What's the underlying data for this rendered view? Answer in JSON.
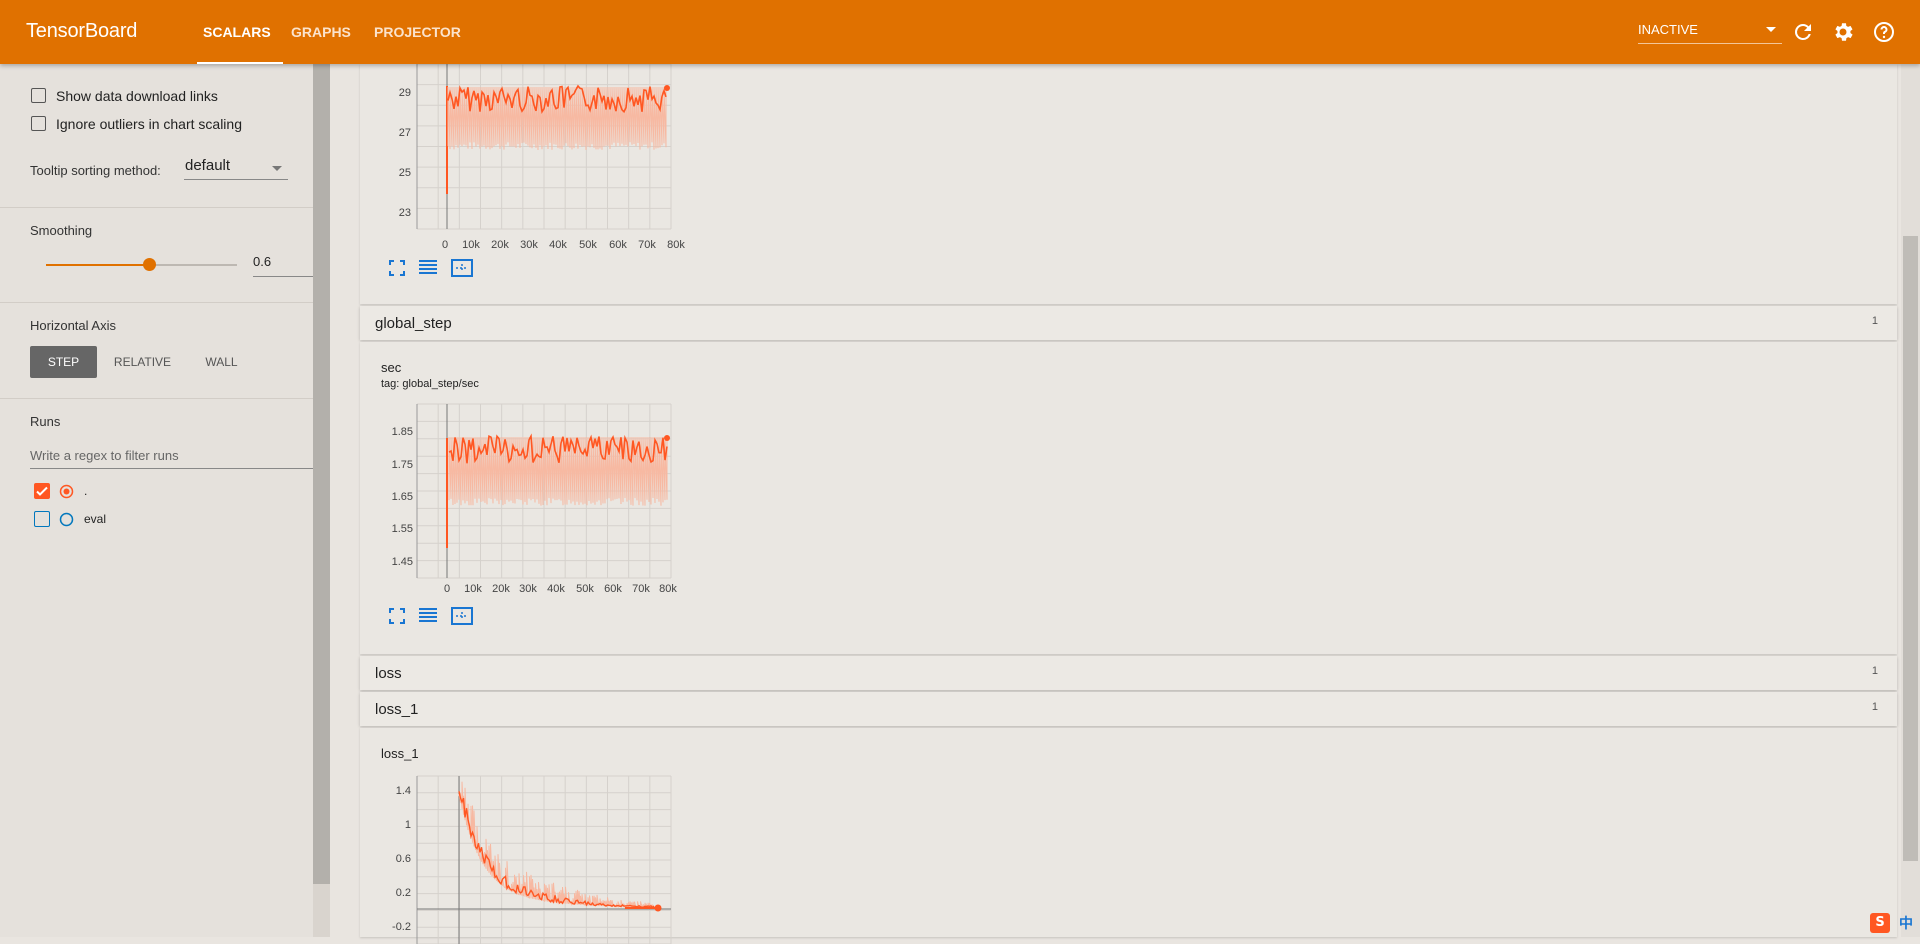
{
  "header": {
    "brand": "TensorBoard",
    "tabs": [
      {
        "label": "SCALARS"
      },
      {
        "label": "GRAPHS"
      },
      {
        "label": "PROJECTOR"
      }
    ],
    "status": "INACTIVE"
  },
  "sidebar": {
    "show_download_links": "Show data download links",
    "ignore_outliers": "Ignore outliers in chart scaling",
    "tooltip_label": "Tooltip sorting method:",
    "tooltip_value": "default",
    "smoothing_label": "Smoothing",
    "smoothing_value": "0.6",
    "smoothing_fraction": 0.6,
    "horizontal_axis_label": "Horizontal Axis",
    "axis_buttons": [
      "STEP",
      "RELATIVE",
      "WALL"
    ],
    "runs_label": "Runs",
    "runs_filter_placeholder": "Write a regex to filter runs",
    "runs": [
      {
        "name": ".",
        "checked": true,
        "color": "#ff5722"
      },
      {
        "name": "eval",
        "checked": false,
        "color": "#0277bd"
      }
    ]
  },
  "sections": [
    {
      "title": "global_step",
      "count": "1"
    },
    {
      "title": "loss",
      "count": "1"
    },
    {
      "title": "loss_1",
      "count": "1"
    }
  ],
  "charts": {
    "top": {
      "y_ticks": [
        "29",
        "27",
        "25",
        "23"
      ],
      "x_ticks": [
        "0",
        "10k",
        "20k",
        "30k",
        "40k",
        "50k",
        "60k",
        "70k",
        "80k"
      ]
    },
    "sec": {
      "title": "sec",
      "tag": "tag: global_step/sec",
      "y_ticks": [
        "1.85",
        "1.75",
        "1.65",
        "1.55",
        "1.45"
      ],
      "x_ticks": [
        "0",
        "10k",
        "20k",
        "30k",
        "40k",
        "50k",
        "60k",
        "70k",
        "80k"
      ]
    },
    "loss_1": {
      "title": "loss_1",
      "y_ticks": [
        "1.4",
        "1",
        "0.6",
        "0.2",
        "-0.2"
      ]
    }
  },
  "colors": {
    "accent": "#e07100",
    "series": "#ff5722",
    "series_light": "#f7b9a2",
    "link_icon": "#1976d2"
  },
  "ime": {
    "label": "中"
  }
}
